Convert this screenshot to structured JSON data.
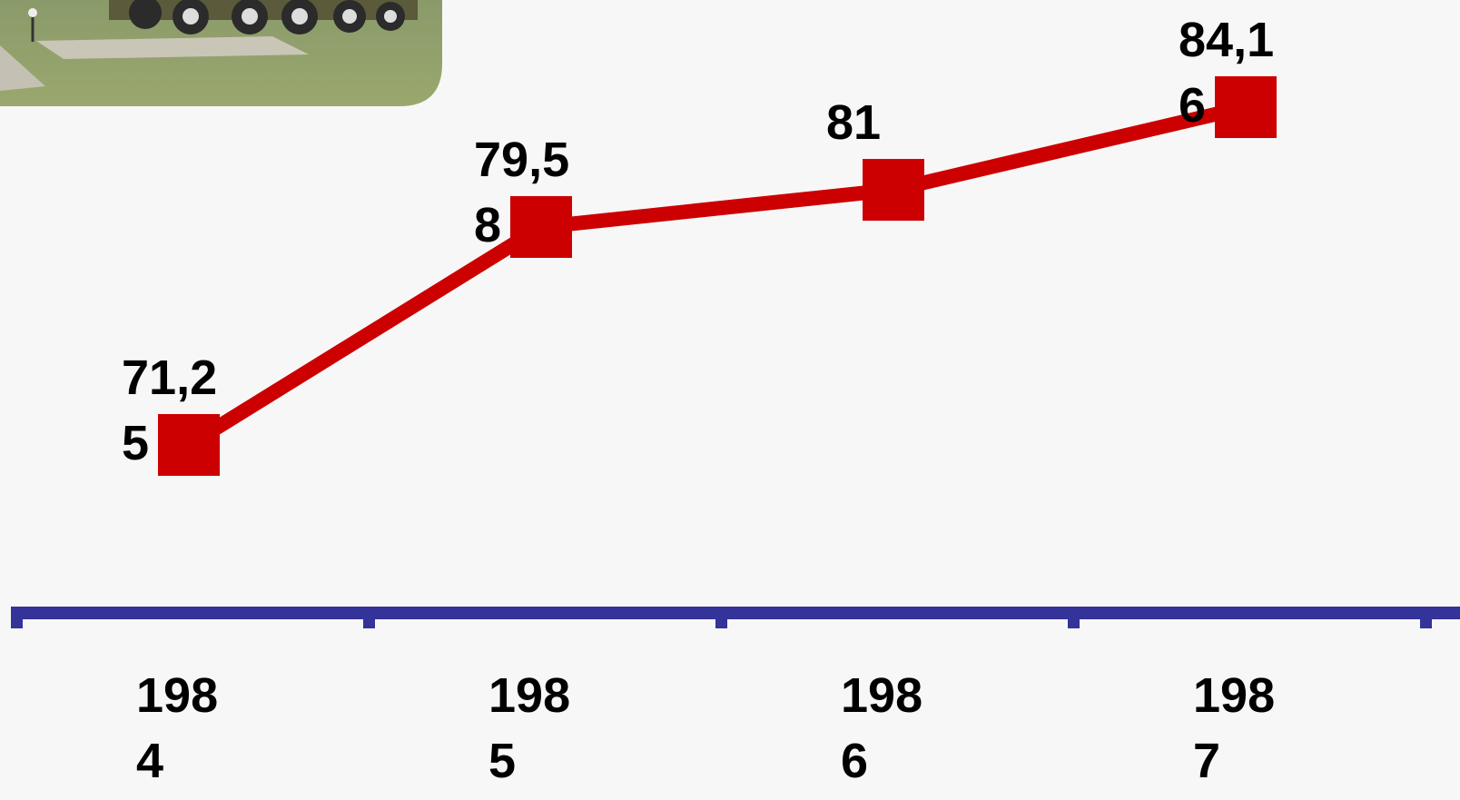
{
  "chart_data": {
    "type": "line",
    "categories": [
      "1984",
      "1985",
      "1986",
      "1987"
    ],
    "values": [
      71.25,
      79.58,
      81,
      84.16
    ],
    "value_labels": [
      "71,25",
      "79,58",
      "81",
      "84,16"
    ],
    "color": "#cc0000"
  }
}
